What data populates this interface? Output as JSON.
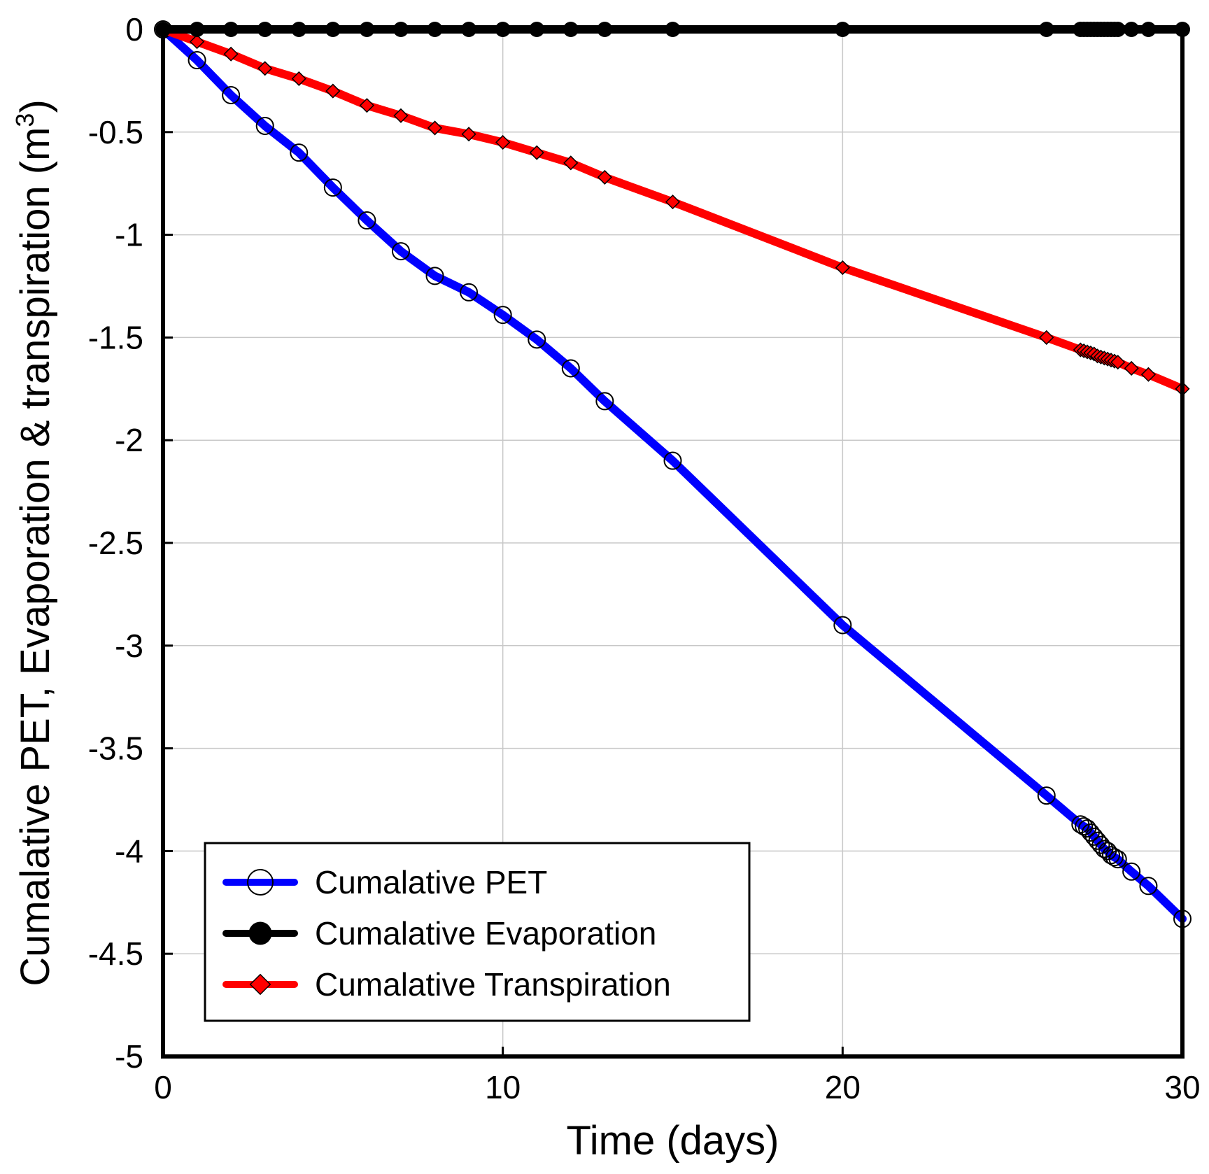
{
  "chart_data": {
    "type": "line",
    "title": "",
    "xlabel": "Time (days)",
    "ylabel": {
      "main": "Cumalative PET, Evaporation & transpiration (m",
      "sup": "3",
      "close": ")"
    },
    "xlim": [
      0,
      30
    ],
    "ylim": [
      -5,
      0
    ],
    "xticks": [
      0,
      10,
      20,
      30
    ],
    "yticks": [
      0,
      -0.5,
      -1,
      -1.5,
      -2,
      -2.5,
      -3,
      -3.5,
      -4,
      -4.5,
      -5
    ],
    "xtick_labels": [
      "0",
      "10",
      "20",
      "30"
    ],
    "ytick_labels": [
      "0",
      "-0.5",
      "-1",
      "-1.5",
      "-2",
      "-2.5",
      "-3",
      "-3.5",
      "-4",
      "-4.5",
      "-5"
    ],
    "grid": true,
    "legend_position": "bottom-left",
    "series": [
      {
        "name": "Cumalative PET",
        "color": "#0000ff",
        "marker": "open-circle",
        "x": [
          0,
          1,
          2,
          3,
          4,
          5,
          6,
          7,
          8,
          9,
          10,
          11,
          12,
          13,
          15,
          20,
          26,
          27,
          27.1,
          27.2,
          27.3,
          27.4,
          27.5,
          27.6,
          27.7,
          27.8,
          27.9,
          28,
          28.1,
          28.5,
          29,
          30
        ],
        "values": [
          0,
          -0.15,
          -0.32,
          -0.47,
          -0.6,
          -0.77,
          -0.93,
          -1.08,
          -1.2,
          -1.28,
          -1.39,
          -1.51,
          -1.65,
          -1.81,
          -2.1,
          -2.9,
          -3.73,
          -3.87,
          -3.88,
          -3.89,
          -3.91,
          -3.93,
          -3.95,
          -3.97,
          -3.99,
          -4.0,
          -4.02,
          -4.03,
          -4.04,
          -4.1,
          -4.17,
          -4.33
        ]
      },
      {
        "name": "Cumalative Evaporation",
        "color": "#000000",
        "marker": "filled-circle",
        "x": [
          0,
          1,
          2,
          3,
          4,
          5,
          6,
          7,
          8,
          9,
          10,
          11,
          12,
          13,
          15,
          20,
          26,
          27,
          27.1,
          27.2,
          27.3,
          27.4,
          27.5,
          27.6,
          27.7,
          27.8,
          27.9,
          28,
          28.1,
          28.5,
          29,
          30
        ],
        "values": [
          0,
          0,
          0,
          0,
          0,
          0,
          0,
          0,
          0,
          0,
          0,
          0,
          0,
          0,
          0,
          0,
          0,
          0,
          0,
          0,
          0,
          0,
          0,
          0,
          0,
          0,
          0,
          0,
          0,
          0,
          0,
          0
        ]
      },
      {
        "name": "Cumalative Transpiration",
        "color": "#ff0000",
        "marker": "open-diamond",
        "x": [
          0,
          1,
          2,
          3,
          4,
          5,
          6,
          7,
          8,
          9,
          10,
          11,
          12,
          13,
          15,
          20,
          26,
          27,
          27.1,
          27.2,
          27.3,
          27.4,
          27.5,
          27.6,
          27.7,
          27.8,
          27.9,
          28,
          28.1,
          28.5,
          29,
          30
        ],
        "values": [
          0,
          -0.06,
          -0.12,
          -0.19,
          -0.24,
          -0.3,
          -0.37,
          -0.42,
          -0.48,
          -0.51,
          -0.55,
          -0.6,
          -0.65,
          -0.72,
          -0.84,
          -1.16,
          -1.5,
          -1.56,
          -1.565,
          -1.57,
          -1.575,
          -1.58,
          -1.59,
          -1.595,
          -1.6,
          -1.605,
          -1.61,
          -1.615,
          -1.62,
          -1.65,
          -1.68,
          -1.75
        ]
      }
    ]
  }
}
